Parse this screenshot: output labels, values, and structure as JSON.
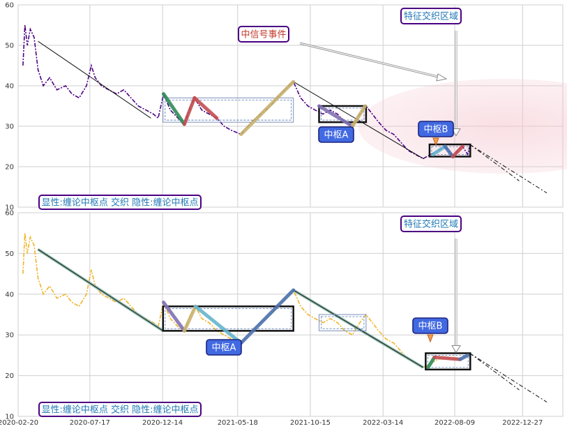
{
  "chart_data": [
    {
      "type": "line",
      "panel": "top",
      "ylim": [
        10,
        60
      ],
      "yticks": [
        "10",
        "20",
        "30",
        "40",
        "50",
        "60"
      ],
      "x_start": "2020-02-20",
      "xlim": [
        "2020-02-20",
        "2023-03-20"
      ],
      "grid": true,
      "price_color": "#4b0082",
      "trend_lines": [
        {
          "points": [
            [
              "2020-04-01",
              51
            ],
            [
              "2020-11-20",
              32
            ]
          ]
        },
        {
          "points": [
            [
              "2021-09-10",
              41
            ],
            [
              "2022-06-05",
              22
            ]
          ]
        },
        {
          "points": [
            [
              "2022-09-09",
              25.5
            ],
            [
              "2022-12-20",
              16.5
            ]
          ],
          "dash": true
        },
        {
          "points": [
            [
              "2022-09-09",
              25.5
            ],
            [
              "2023-02-15",
              13.5
            ]
          ],
          "dash": true
        }
      ],
      "strokes": [
        {
          "color": "#2e8b57",
          "points": [
            [
              "2020-12-16",
              38
            ],
            [
              "2021-01-28",
              30.5
            ]
          ]
        },
        {
          "color": "#c44e52",
          "points": [
            [
              "2021-01-28",
              30.5
            ],
            [
              "2021-02-18",
              37
            ]
          ]
        },
        {
          "color": "#c44e52",
          "points": [
            [
              "2021-02-18",
              37
            ],
            [
              "2021-04-05",
              32
            ]
          ]
        },
        {
          "color": "#c9b36e",
          "points": [
            [
              "2021-05-25",
              28
            ],
            [
              "2021-09-10",
              41
            ]
          ]
        },
        {
          "color": "#8172b2",
          "points": [
            [
              "2021-11-02",
              35
            ],
            [
              "2022-01-10",
              30
            ]
          ]
        },
        {
          "color": "#c9b36e",
          "points": [
            [
              "2022-01-10",
              30
            ],
            [
              "2022-02-05",
              35
            ]
          ]
        },
        {
          "color": "#64b5cd",
          "points": [
            [
              "2022-06-25",
              23
            ],
            [
              "2022-07-20",
              25
            ]
          ]
        },
        {
          "color": "#4c72b0",
          "points": [
            [
              "2022-07-20",
              25
            ],
            [
              "2022-08-05",
              22.5
            ]
          ]
        },
        {
          "color": "#c44e52",
          "points": [
            [
              "2022-08-05",
              22.5
            ],
            [
              "2022-08-25",
              25
            ]
          ]
        }
      ],
      "zones": [
        {
          "x0": "2020-12-15",
          "x1": "2021-09-10",
          "y0": 31,
          "y1": 37,
          "style": "thin"
        },
        {
          "x0": "2021-11-02",
          "x1": "2022-02-07",
          "y0": 31,
          "y1": 35,
          "style": "bold"
        },
        {
          "x0": "2022-06-18",
          "x1": "2022-09-10",
          "y0": 22.5,
          "y1": 25.5,
          "style": "bold"
        }
      ],
      "labels": {
        "zhongxin": "中信号事件",
        "feature": "特征交织区域",
        "zsA": "中枢A",
        "zsB": "中枢B",
        "legend": "显性:缠论中枢点 交织 隐性:缠论中枢点"
      },
      "price": [
        [
          "2020-03-01",
          45
        ],
        [
          "2020-03-05",
          55
        ],
        [
          "2020-03-10",
          50
        ],
        [
          "2020-03-16",
          54
        ],
        [
          "2020-03-24",
          52
        ],
        [
          "2020-04-01",
          44
        ],
        [
          "2020-04-12",
          40
        ],
        [
          "2020-04-25",
          42
        ],
        [
          "2020-05-10",
          39
        ],
        [
          "2020-05-28",
          40
        ],
        [
          "2020-06-10",
          38
        ],
        [
          "2020-06-25",
          37
        ],
        [
          "2020-07-10",
          40
        ],
        [
          "2020-07-20",
          45
        ],
        [
          "2020-07-28",
          42
        ],
        [
          "2020-08-10",
          40
        ],
        [
          "2020-08-25",
          39
        ],
        [
          "2020-09-10",
          38
        ],
        [
          "2020-09-25",
          39
        ],
        [
          "2020-10-10",
          37
        ],
        [
          "2020-10-25",
          35
        ],
        [
          "2020-11-10",
          34
        ],
        [
          "2020-11-25",
          33
        ],
        [
          "2020-12-05",
          32
        ],
        [
          "2020-12-16",
          38
        ],
        [
          "2020-12-30",
          34
        ],
        [
          "2021-01-15",
          32
        ],
        [
          "2021-01-28",
          30.5
        ],
        [
          "2021-02-10",
          35
        ],
        [
          "2021-02-18",
          37
        ],
        [
          "2021-03-05",
          34
        ],
        [
          "2021-03-20",
          33
        ],
        [
          "2021-04-05",
          32
        ],
        [
          "2021-04-20",
          30
        ],
        [
          "2021-05-05",
          29
        ],
        [
          "2021-05-25",
          28
        ],
        [
          "2021-06-15",
          31
        ],
        [
          "2021-07-05",
          33
        ],
        [
          "2021-07-25",
          35
        ],
        [
          "2021-08-15",
          38
        ],
        [
          "2021-09-01",
          40
        ],
        [
          "2021-09-10",
          41
        ],
        [
          "2021-09-25",
          37
        ],
        [
          "2021-10-10",
          35
        ],
        [
          "2021-10-25",
          34
        ],
        [
          "2021-11-10",
          33
        ],
        [
          "2021-11-25",
          34
        ],
        [
          "2021-12-10",
          33
        ],
        [
          "2021-12-25",
          31
        ],
        [
          "2022-01-10",
          30
        ],
        [
          "2022-01-25",
          33
        ],
        [
          "2022-02-07",
          35
        ],
        [
          "2022-02-20",
          33
        ],
        [
          "2022-03-05",
          31
        ],
        [
          "2022-03-20",
          29
        ],
        [
          "2022-04-05",
          28
        ],
        [
          "2022-04-20",
          26
        ],
        [
          "2022-05-05",
          24
        ],
        [
          "2022-05-20",
          23
        ],
        [
          "2022-06-05",
          22
        ],
        [
          "2022-06-20",
          23
        ],
        [
          "2022-07-05",
          24
        ],
        [
          "2022-07-20",
          25
        ],
        [
          "2022-08-05",
          22.5
        ],
        [
          "2022-08-15",
          24
        ],
        [
          "2022-08-25",
          25
        ],
        [
          "2022-09-05",
          23
        ],
        [
          "2022-09-09",
          25
        ]
      ]
    },
    {
      "type": "line",
      "panel": "bottom",
      "ylim": [
        10,
        60
      ],
      "yticks": [
        "10",
        "20",
        "30",
        "40",
        "50",
        "60"
      ],
      "xticks": [
        "2020-02-20",
        "2020-07-17",
        "2020-12-14",
        "2021-05-18",
        "2021-10-15",
        "2022-03-14",
        "2022-08-09",
        "2022-12-27"
      ],
      "x_start": "2020-02-20",
      "xlim": [
        "2020-02-20",
        "2023-03-20"
      ],
      "grid": true,
      "price_color": "#f0b429",
      "trend_lines": [
        {
          "points": [
            [
              "2020-04-01",
              51
            ],
            [
              "2020-12-15",
              31
            ]
          ]
        },
        {
          "points": [
            [
              "2021-09-10",
              41
            ],
            [
              "2022-06-05",
              22
            ]
          ]
        },
        {
          "points": [
            [
              "2022-09-09",
              25.5
            ],
            [
              "2022-12-20",
              16.5
            ]
          ],
          "dash": true
        },
        {
          "points": [
            [
              "2022-09-09",
              25.5
            ],
            [
              "2023-02-15",
              13.5
            ]
          ],
          "dash": true
        }
      ],
      "strokes": [
        {
          "color": "#8172b2",
          "points": [
            [
              "2020-12-16",
              38
            ],
            [
              "2021-01-28",
              31
            ]
          ]
        },
        {
          "color": "#c9b36e",
          "points": [
            [
              "2021-01-28",
              31
            ],
            [
              "2021-02-20",
              37
            ]
          ]
        },
        {
          "color": "#64b5cd",
          "points": [
            [
              "2021-02-20",
              37
            ],
            [
              "2021-05-25",
              28
            ]
          ]
        },
        {
          "color": "#4c72b0",
          "points": [
            [
              "2021-05-25",
              28
            ],
            [
              "2021-09-10",
              41
            ]
          ]
        },
        {
          "color": "#2e8b57",
          "points": [
            [
              "2022-06-15",
              22
            ],
            [
              "2022-06-28",
              24.5
            ]
          ]
        },
        {
          "color": "#c44e52",
          "points": [
            [
              "2022-06-28",
              24.5
            ],
            [
              "2022-08-20",
              24
            ]
          ]
        },
        {
          "color": "#4c72b0",
          "points": [
            [
              "2022-08-20",
              24
            ],
            [
              "2022-09-05",
              25
            ]
          ]
        }
      ],
      "zones": [
        {
          "x0": "2020-12-15",
          "x1": "2021-09-10",
          "y0": 31,
          "y1": 37,
          "style": "bold"
        },
        {
          "x0": "2021-11-02",
          "x1": "2022-02-07",
          "y0": 31,
          "y1": 35,
          "style": "thin"
        },
        {
          "x0": "2022-06-10",
          "x1": "2022-09-10",
          "y0": 21.5,
          "y1": 25.5,
          "style": "bold"
        }
      ],
      "labels": {
        "feature": "特征交织区域",
        "zsA": "中枢A",
        "zsB": "中枢B",
        "legend": "显性:缠论中枢点 交织 隐性:缠论中枢点"
      },
      "price": [
        [
          "2020-03-01",
          45
        ],
        [
          "2020-03-05",
          55
        ],
        [
          "2020-03-10",
          50
        ],
        [
          "2020-03-16",
          54
        ],
        [
          "2020-03-24",
          52
        ],
        [
          "2020-04-01",
          44
        ],
        [
          "2020-04-12",
          40
        ],
        [
          "2020-04-25",
          42
        ],
        [
          "2020-05-10",
          39
        ],
        [
          "2020-05-28",
          40
        ],
        [
          "2020-06-10",
          38
        ],
        [
          "2020-06-25",
          37
        ],
        [
          "2020-07-10",
          40
        ],
        [
          "2020-07-20",
          46
        ],
        [
          "2020-07-28",
          42
        ],
        [
          "2020-08-10",
          40
        ],
        [
          "2020-08-25",
          39
        ],
        [
          "2020-09-10",
          38
        ],
        [
          "2020-09-25",
          39
        ],
        [
          "2020-10-10",
          37
        ],
        [
          "2020-10-25",
          35
        ],
        [
          "2020-11-10",
          34
        ],
        [
          "2020-11-25",
          33
        ],
        [
          "2020-12-05",
          32
        ],
        [
          "2020-12-16",
          38
        ],
        [
          "2020-12-30",
          34
        ],
        [
          "2021-01-15",
          32
        ],
        [
          "2021-01-28",
          31
        ],
        [
          "2021-02-10",
          35
        ],
        [
          "2021-02-20",
          37
        ],
        [
          "2021-03-05",
          34
        ],
        [
          "2021-03-20",
          33
        ],
        [
          "2021-04-05",
          31
        ],
        [
          "2021-04-20",
          30
        ],
        [
          "2021-05-05",
          29
        ],
        [
          "2021-05-25",
          28
        ],
        [
          "2021-06-15",
          31
        ],
        [
          "2021-07-05",
          33
        ],
        [
          "2021-07-25",
          35
        ],
        [
          "2021-08-15",
          38
        ],
        [
          "2021-09-01",
          40
        ],
        [
          "2021-09-10",
          41
        ],
        [
          "2021-09-25",
          37
        ],
        [
          "2021-10-10",
          35
        ],
        [
          "2021-10-25",
          34
        ],
        [
          "2021-11-10",
          33
        ],
        [
          "2021-11-25",
          34
        ],
        [
          "2021-12-10",
          33
        ],
        [
          "2021-12-25",
          31
        ],
        [
          "2022-01-10",
          30
        ],
        [
          "2022-01-25",
          33
        ],
        [
          "2022-02-07",
          35
        ],
        [
          "2022-02-20",
          33
        ],
        [
          "2022-03-05",
          31
        ],
        [
          "2022-03-20",
          29
        ],
        [
          "2022-04-05",
          28
        ],
        [
          "2022-04-20",
          26
        ],
        [
          "2022-05-05",
          24
        ],
        [
          "2022-05-20",
          23
        ],
        [
          "2022-06-05",
          22
        ],
        [
          "2022-06-20",
          23
        ],
        [
          "2022-07-05",
          24
        ],
        [
          "2022-07-20",
          24.5
        ],
        [
          "2022-08-05",
          24
        ],
        [
          "2022-08-15",
          24
        ],
        [
          "2022-08-25",
          24.5
        ],
        [
          "2022-09-05",
          25
        ],
        [
          "2022-09-09",
          25
        ]
      ]
    }
  ]
}
